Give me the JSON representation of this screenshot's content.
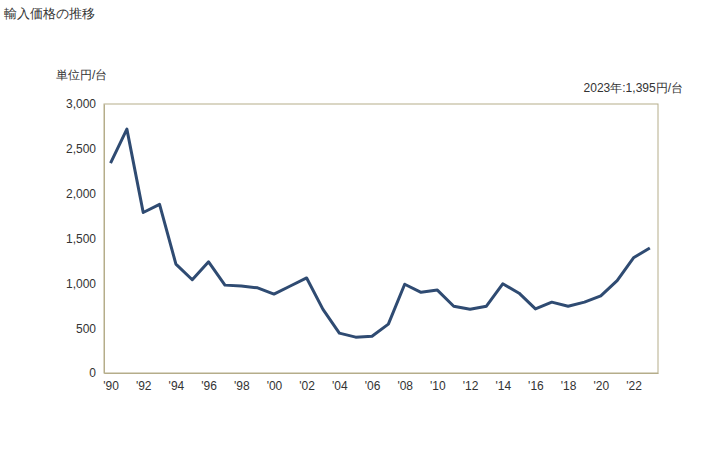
{
  "chart_data": {
    "type": "line",
    "title": "輸入価格の推移",
    "y_label": "単位円/台",
    "annotation": "2023年:1,395円/台",
    "x": [
      1990,
      1991,
      1992,
      1993,
      1994,
      1995,
      1996,
      1997,
      1998,
      1999,
      2000,
      2001,
      2002,
      2003,
      2004,
      2005,
      2006,
      2007,
      2008,
      2009,
      2010,
      2011,
      2012,
      2013,
      2014,
      2015,
      2016,
      2017,
      2018,
      2019,
      2020,
      2021,
      2022,
      2023
    ],
    "values": [
      2340,
      2720,
      1790,
      1880,
      1215,
      1040,
      1240,
      980,
      970,
      950,
      880,
      970,
      1060,
      710,
      445,
      400,
      410,
      545,
      990,
      900,
      925,
      745,
      710,
      745,
      995,
      890,
      715,
      790,
      745,
      790,
      860,
      1030,
      1285,
      1395
    ],
    "color": "#2f4b72",
    "xlim": [
      1989.6,
      2023.5
    ],
    "xticks": [
      {
        "value": 1990,
        "label": "'90"
      },
      {
        "value": 1992,
        "label": "'92"
      },
      {
        "value": 1994,
        "label": "'94"
      },
      {
        "value": 1996,
        "label": "'96"
      },
      {
        "value": 1998,
        "label": "'98"
      },
      {
        "value": 2000,
        "label": "'00"
      },
      {
        "value": 2002,
        "label": "'02"
      },
      {
        "value": 2004,
        "label": "'04"
      },
      {
        "value": 2006,
        "label": "'06"
      },
      {
        "value": 2008,
        "label": "'08"
      },
      {
        "value": 2010,
        "label": "'10"
      },
      {
        "value": 2012,
        "label": "'12"
      },
      {
        "value": 2014,
        "label": "'14"
      },
      {
        "value": 2016,
        "label": "'16"
      },
      {
        "value": 2018,
        "label": "'18"
      },
      {
        "value": 2020,
        "label": "'20"
      },
      {
        "value": 2022,
        "label": "'22"
      }
    ],
    "ylim": [
      0,
      3000
    ],
    "yticks": [
      0,
      500,
      {
        "value": 1000,
        "label": "1,000"
      },
      {
        "value": 1500,
        "label": "1,500"
      },
      {
        "value": 2000,
        "label": "2,000"
      },
      {
        "value": 2500,
        "label": "2,500"
      },
      {
        "value": 3000,
        "label": "3,000"
      }
    ],
    "grid": false
  }
}
